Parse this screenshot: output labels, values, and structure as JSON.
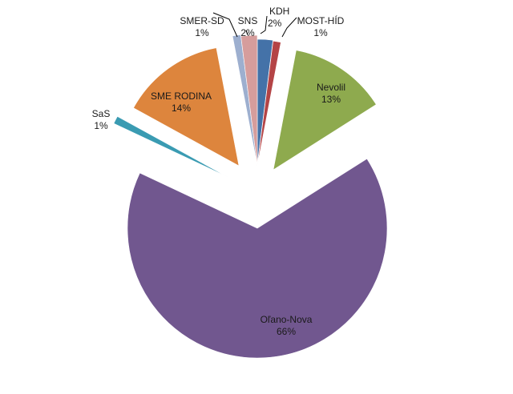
{
  "chart_data": {
    "type": "pie",
    "exploded": true,
    "slices": [
      {
        "label": "KDH",
        "pct_label": "2%",
        "value": 2,
        "color": "#4472A8"
      },
      {
        "label": "MOST-HÍD",
        "pct_label": "1%",
        "value": 1,
        "color": "#B44446"
      },
      {
        "label": "Nevolil",
        "pct_label": "13%",
        "value": 13,
        "color": "#8EAA4E"
      },
      {
        "label": "Oľano-Nova",
        "pct_label": "66%",
        "value": 66,
        "color": "#71578F"
      },
      {
        "label": "SaS",
        "pct_label": "1%",
        "value": 1,
        "color": "#3A9BB2"
      },
      {
        "label": "SME RODINA",
        "pct_label": "14%",
        "value": 14,
        "color": "#DD853D"
      },
      {
        "label": "SMER-SD",
        "pct_label": "1%",
        "value": 1,
        "color": "#9DAFCF"
      },
      {
        "label": "SNS",
        "pct_label": "2%",
        "value": 2,
        "color": "#D69D9C"
      }
    ]
  }
}
